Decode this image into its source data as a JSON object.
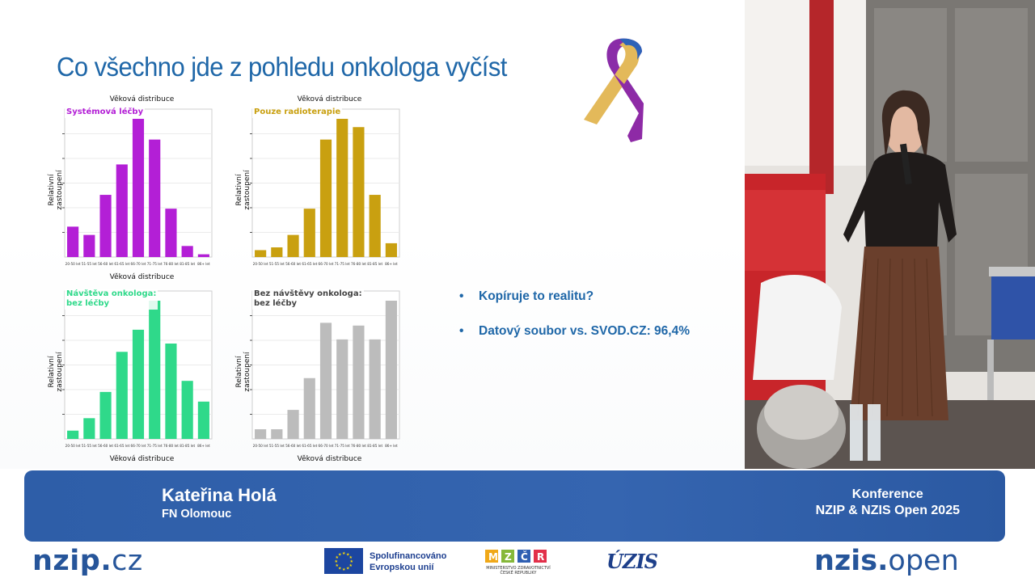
{
  "slide": {
    "title": "Co všechno jde z pohledu onkologa vyčíst",
    "bullets": [
      "Kopíruje to realitu?",
      "Datový soubor vs. SVOD.CZ: 96,4%"
    ]
  },
  "chart_data": [
    {
      "type": "bar",
      "title": "Věková distribuce",
      "xlabel": "Věková distribuce",
      "ylabel": "Relativní zastoupení",
      "legend": [
        "Systémová léčby"
      ],
      "color": "#b31fd6",
      "categories": [
        "20-50 let",
        "51-55 let",
        "56-60 let",
        "61-65 let",
        "66-70 let",
        "71-75 let",
        "76-80 let",
        "81-85 let",
        "86+ let"
      ],
      "series": [
        {
          "name": "Systémová léčby",
          "values": [
            22,
            16,
            45,
            67,
            100,
            85,
            35,
            8,
            2
          ]
        }
      ]
    },
    {
      "type": "bar",
      "title": "Věková distribuce",
      "xlabel": "",
      "ylabel": "Relativní zastoupení",
      "legend": [
        "Pouze radioterapie"
      ],
      "color": "#c9a010",
      "categories": [
        "20-50 let",
        "51-55 let",
        "56-60 let",
        "61-65 let",
        "66-70 let",
        "71-75 let",
        "76-80 let",
        "81-85 let",
        "86+ let"
      ],
      "series": [
        {
          "name": "Pouze radioterapie",
          "values": [
            5,
            7,
            16,
            35,
            85,
            100,
            94,
            45,
            10
          ]
        }
      ]
    },
    {
      "type": "bar",
      "title": "",
      "xlabel": "Věková distribuce",
      "ylabel": "Relativní zastoupení",
      "legend": [
        "Návštěva onkologa:",
        "bez léčby"
      ],
      "color": "#2fd98a",
      "categories": [
        "20-50 let",
        "51-55 let",
        "56-60 let",
        "61-65 let",
        "66-70 let",
        "71-75 let",
        "76-80 let",
        "81-85 let",
        "86+ let"
      ],
      "series": [
        {
          "name": "Návštěva onkologa: bez léčby",
          "values": [
            6,
            15,
            34,
            63,
            79,
            100,
            69,
            42,
            27
          ]
        }
      ]
    },
    {
      "type": "bar",
      "title": "",
      "xlabel": "Věková distribuce",
      "ylabel": "Relativní zastoupení",
      "legend": [
        "Bez návštěvy onkologa:",
        "bez léčby"
      ],
      "color": "#bcbcbc",
      "categories": [
        "20-50 let",
        "51-55 let",
        "56-60 let",
        "61-65 let",
        "66-70 let",
        "71-75 let",
        "76-80 let",
        "81-85 let",
        "86+ let"
      ],
      "series": [
        {
          "name": "Bez návštěvy onkologa: bez léčby",
          "values": [
            7,
            7,
            21,
            44,
            84,
            72,
            82,
            72,
            100
          ]
        }
      ]
    }
  ],
  "lower_third": {
    "name": "Kateřina Holá",
    "organization": "FN Olomouc",
    "event_line1": "Konference",
    "event_line2": "NZIP & NZIS Open 2025"
  },
  "footer": {
    "nzip_main": "nzip",
    "nzip_dot": ".",
    "nzip_tld": "cz",
    "eu_line1": "Spolufinancováno",
    "eu_line2": "Evropskou unií",
    "mz_line1": "MINISTERSTVO ZDRAVOTNICTVÍ",
    "mz_line2": "ČESKÉ REPUBLIKY",
    "uzis": "ÚZIS",
    "nzis_main": "nzis",
    "nzis_dot": ".",
    "nzis_tld": "open"
  },
  "colors": {
    "title_blue": "#1f67a8",
    "banner_blue": "#3565b0",
    "logo_blue": "#26559a"
  }
}
